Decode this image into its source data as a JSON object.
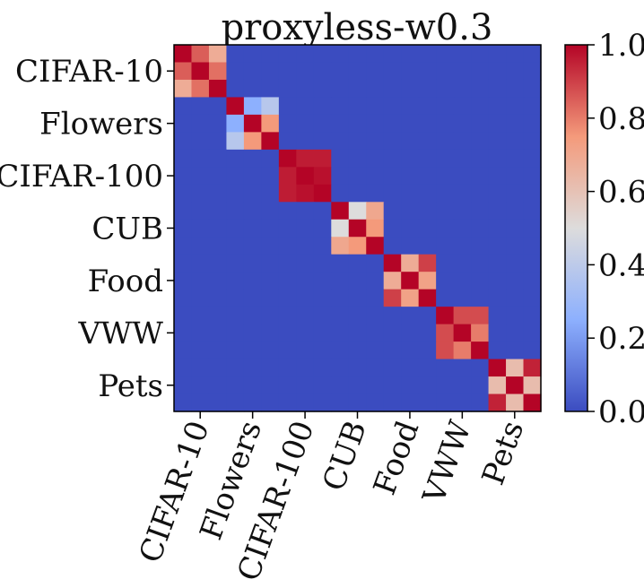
{
  "chart_data": {
    "type": "heatmap",
    "title": "proxyless-w0.3",
    "groups": [
      "CIFAR-10",
      "Flowers",
      "CIFAR-100",
      "CUB",
      "Food",
      "VWW",
      "Pets"
    ],
    "group_size": 3,
    "colormap": "coolwarm",
    "colorbar": {
      "min": 0.0,
      "max": 1.0,
      "ticks": [
        "0.0",
        "0.2",
        "0.4",
        "0.6",
        "0.8",
        "1.0"
      ]
    },
    "off_block_value": 0.0,
    "blocks": [
      [
        [
          1.0,
          0.85,
          0.68
        ],
        [
          0.85,
          1.0,
          0.82
        ],
        [
          0.68,
          0.82,
          1.0
        ]
      ],
      [
        [
          1.0,
          0.25,
          0.38
        ],
        [
          0.25,
          1.0,
          0.75
        ],
        [
          0.38,
          0.75,
          1.0
        ]
      ],
      [
        [
          1.0,
          0.96,
          0.96
        ],
        [
          0.96,
          1.0,
          0.98
        ],
        [
          0.96,
          0.98,
          1.0
        ]
      ],
      [
        [
          1.0,
          0.5,
          0.7
        ],
        [
          0.5,
          1.0,
          0.75
        ],
        [
          0.7,
          0.75,
          1.0
        ]
      ],
      [
        [
          1.0,
          0.68,
          0.9
        ],
        [
          0.68,
          1.0,
          0.72
        ],
        [
          0.9,
          0.72,
          1.0
        ]
      ],
      [
        [
          1.0,
          0.88,
          0.88
        ],
        [
          0.88,
          1.0,
          0.8
        ],
        [
          0.88,
          0.8,
          1.0
        ]
      ],
      [
        [
          1.0,
          0.62,
          0.95
        ],
        [
          0.62,
          1.0,
          0.62
        ],
        [
          0.95,
          0.62,
          1.0
        ]
      ]
    ]
  }
}
